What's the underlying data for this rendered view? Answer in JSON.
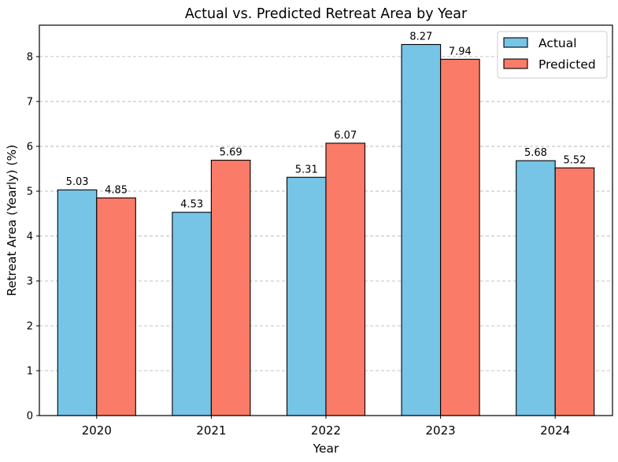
{
  "chart_data": {
    "type": "bar",
    "title": "Actual vs. Predicted Retreat Area by Year",
    "xlabel": "Year",
    "ylabel": "Retreat Area (Yearly) (%)",
    "categories": [
      "2020",
      "2021",
      "2022",
      "2023",
      "2024"
    ],
    "series": [
      {
        "name": "Actual",
        "color": "#76c4e6",
        "values": [
          5.03,
          4.53,
          5.31,
          8.27,
          5.68
        ]
      },
      {
        "name": "Predicted",
        "color": "#fa7b67",
        "values": [
          4.85,
          5.69,
          6.07,
          7.94,
          5.52
        ]
      }
    ],
    "ylim": [
      0,
      8.7
    ],
    "yticks": [
      0,
      1,
      2,
      3,
      4,
      5,
      6,
      7,
      8
    ],
    "grid": "y-dashed",
    "legend": "top-right",
    "data_labels": true
  }
}
